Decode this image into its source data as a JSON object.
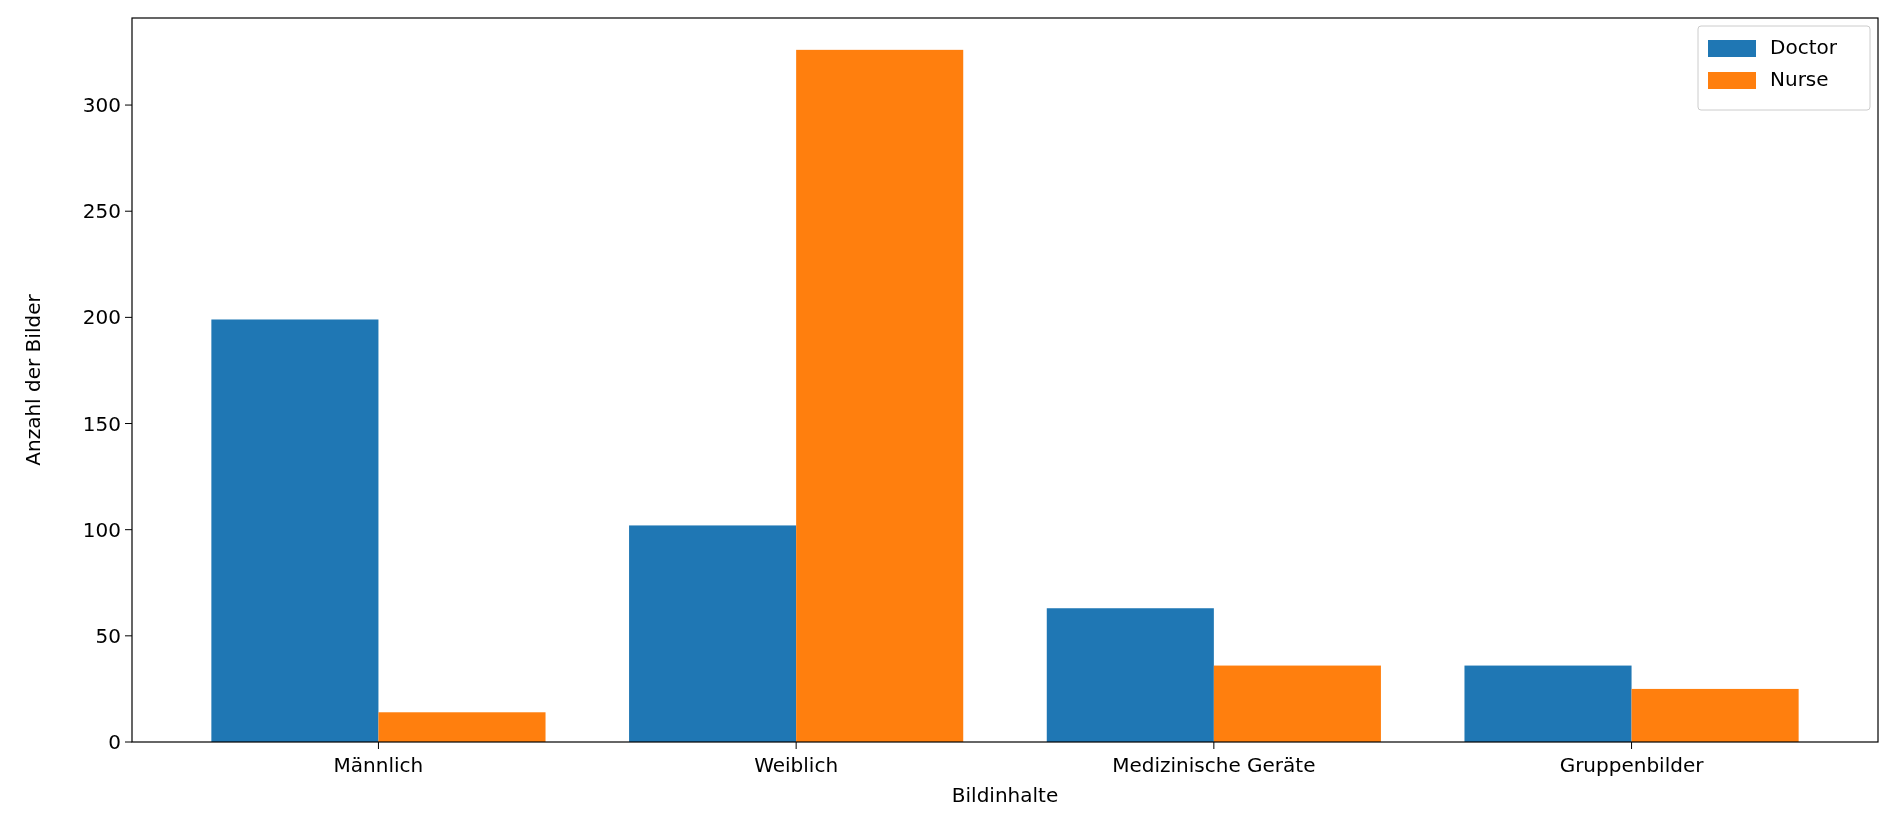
{
  "chart_data": {
    "type": "bar",
    "xlabel": "Bildinhalte",
    "ylabel": "Anzahl der Bilder",
    "categories": [
      "Männlich",
      "Weiblich",
      "Medizinische Geräte",
      "Gruppenbilder"
    ],
    "series": [
      {
        "name": "Doctor",
        "color": "#1f77b4",
        "values": [
          199,
          102,
          63,
          36
        ]
      },
      {
        "name": "Nurse",
        "color": "#ff7f0e",
        "values": [
          14,
          326,
          36,
          25
        ]
      }
    ],
    "ylim": [
      0,
      341
    ],
    "yticks": [
      0,
      50,
      100,
      150,
      200,
      250,
      300
    ],
    "legend": "top right",
    "grid": false
  }
}
